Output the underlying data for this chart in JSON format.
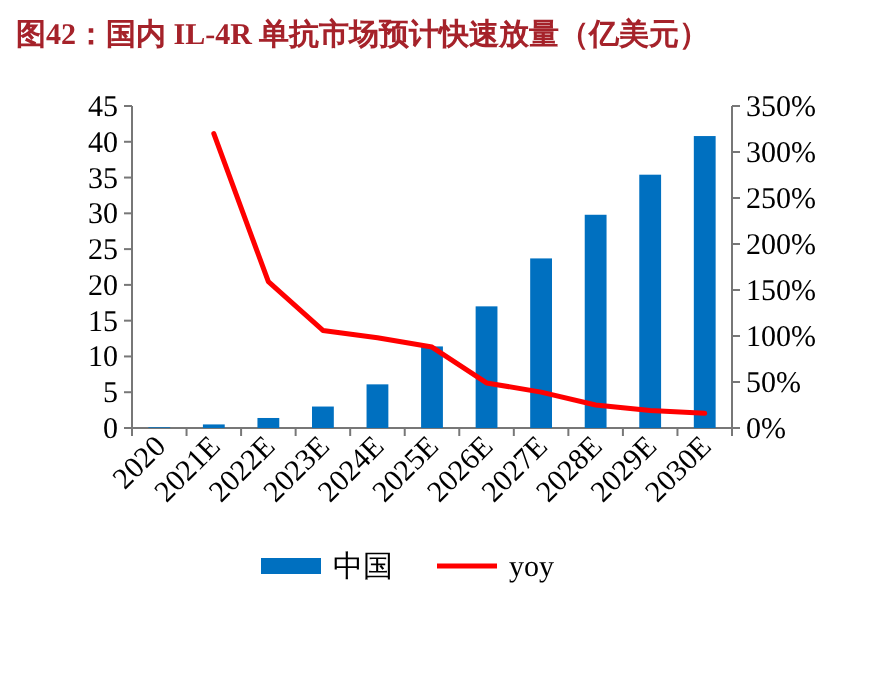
{
  "chart_data": {
    "type": "bar",
    "title": "图42：国内 IL-4R 单抗市场预计快速放量（亿美元）",
    "categories": [
      "2020",
      "2021E",
      "2022E",
      "2023E",
      "2024E",
      "2025E",
      "2026E",
      "2027E",
      "2028E",
      "2029E",
      "2030E"
    ],
    "series": [
      {
        "name": "中国",
        "color": "#0070c0",
        "values": [
          0.1,
          0.5,
          1.4,
          3.0,
          6.1,
          11.4,
          17.0,
          23.7,
          29.8,
          35.4,
          40.8
        ]
      },
      {
        "name": "yoy",
        "type": "line",
        "axis": "y2",
        "color": "#ff0000",
        "values": [
          null,
          320,
          159,
          106,
          98,
          88,
          49,
          39,
          25,
          19,
          16
        ]
      }
    ],
    "ylim": [
      0,
      45
    ],
    "yticks": [
      0,
      5,
      10,
      15,
      20,
      25,
      30,
      35,
      40,
      45
    ],
    "y2lim": [
      0,
      350
    ],
    "y2ticks": [
      {
        "value": 0,
        "label": "0%"
      },
      {
        "value": 50,
        "label": "50%"
      },
      {
        "value": 100,
        "label": "100%"
      },
      {
        "value": 150,
        "label": "150%"
      },
      {
        "value": 200,
        "label": "200%"
      },
      {
        "value": 250,
        "label": "250%"
      },
      {
        "value": 300,
        "label": "300%"
      },
      {
        "value": 350,
        "label": "350%"
      }
    ],
    "legend": "bottom"
  }
}
